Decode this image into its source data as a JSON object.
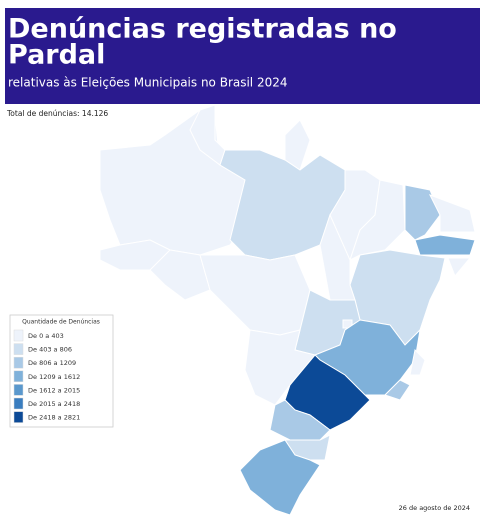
{
  "header": {
    "title_lines": [
      "Denúncias registradas no",
      "Pardal"
    ],
    "subtitle": "relativas às Eleições Municipais no Brasil 2024"
  },
  "total": "Total de denúncias: 14.126",
  "legend": {
    "title": "Quantidade de Denúncias",
    "items": [
      {
        "label": "De 0 a 403",
        "color": "#eef3fb"
      },
      {
        "label": "De 403 a 806",
        "color": "#cddff0"
      },
      {
        "label": "De 806 a 1209",
        "color": "#a9c9e6"
      },
      {
        "label": "De 1209 a 1612",
        "color": "#7fb1da"
      },
      {
        "label": "De 1612 a 2015",
        "color": "#5a98cd"
      },
      {
        "label": "De 2015 a 2418",
        "color": "#3a7dbf"
      },
      {
        "label": "De 2418 a 2821",
        "color": "#0c4a97"
      }
    ]
  },
  "date": "26 de agosto de 2024"
}
